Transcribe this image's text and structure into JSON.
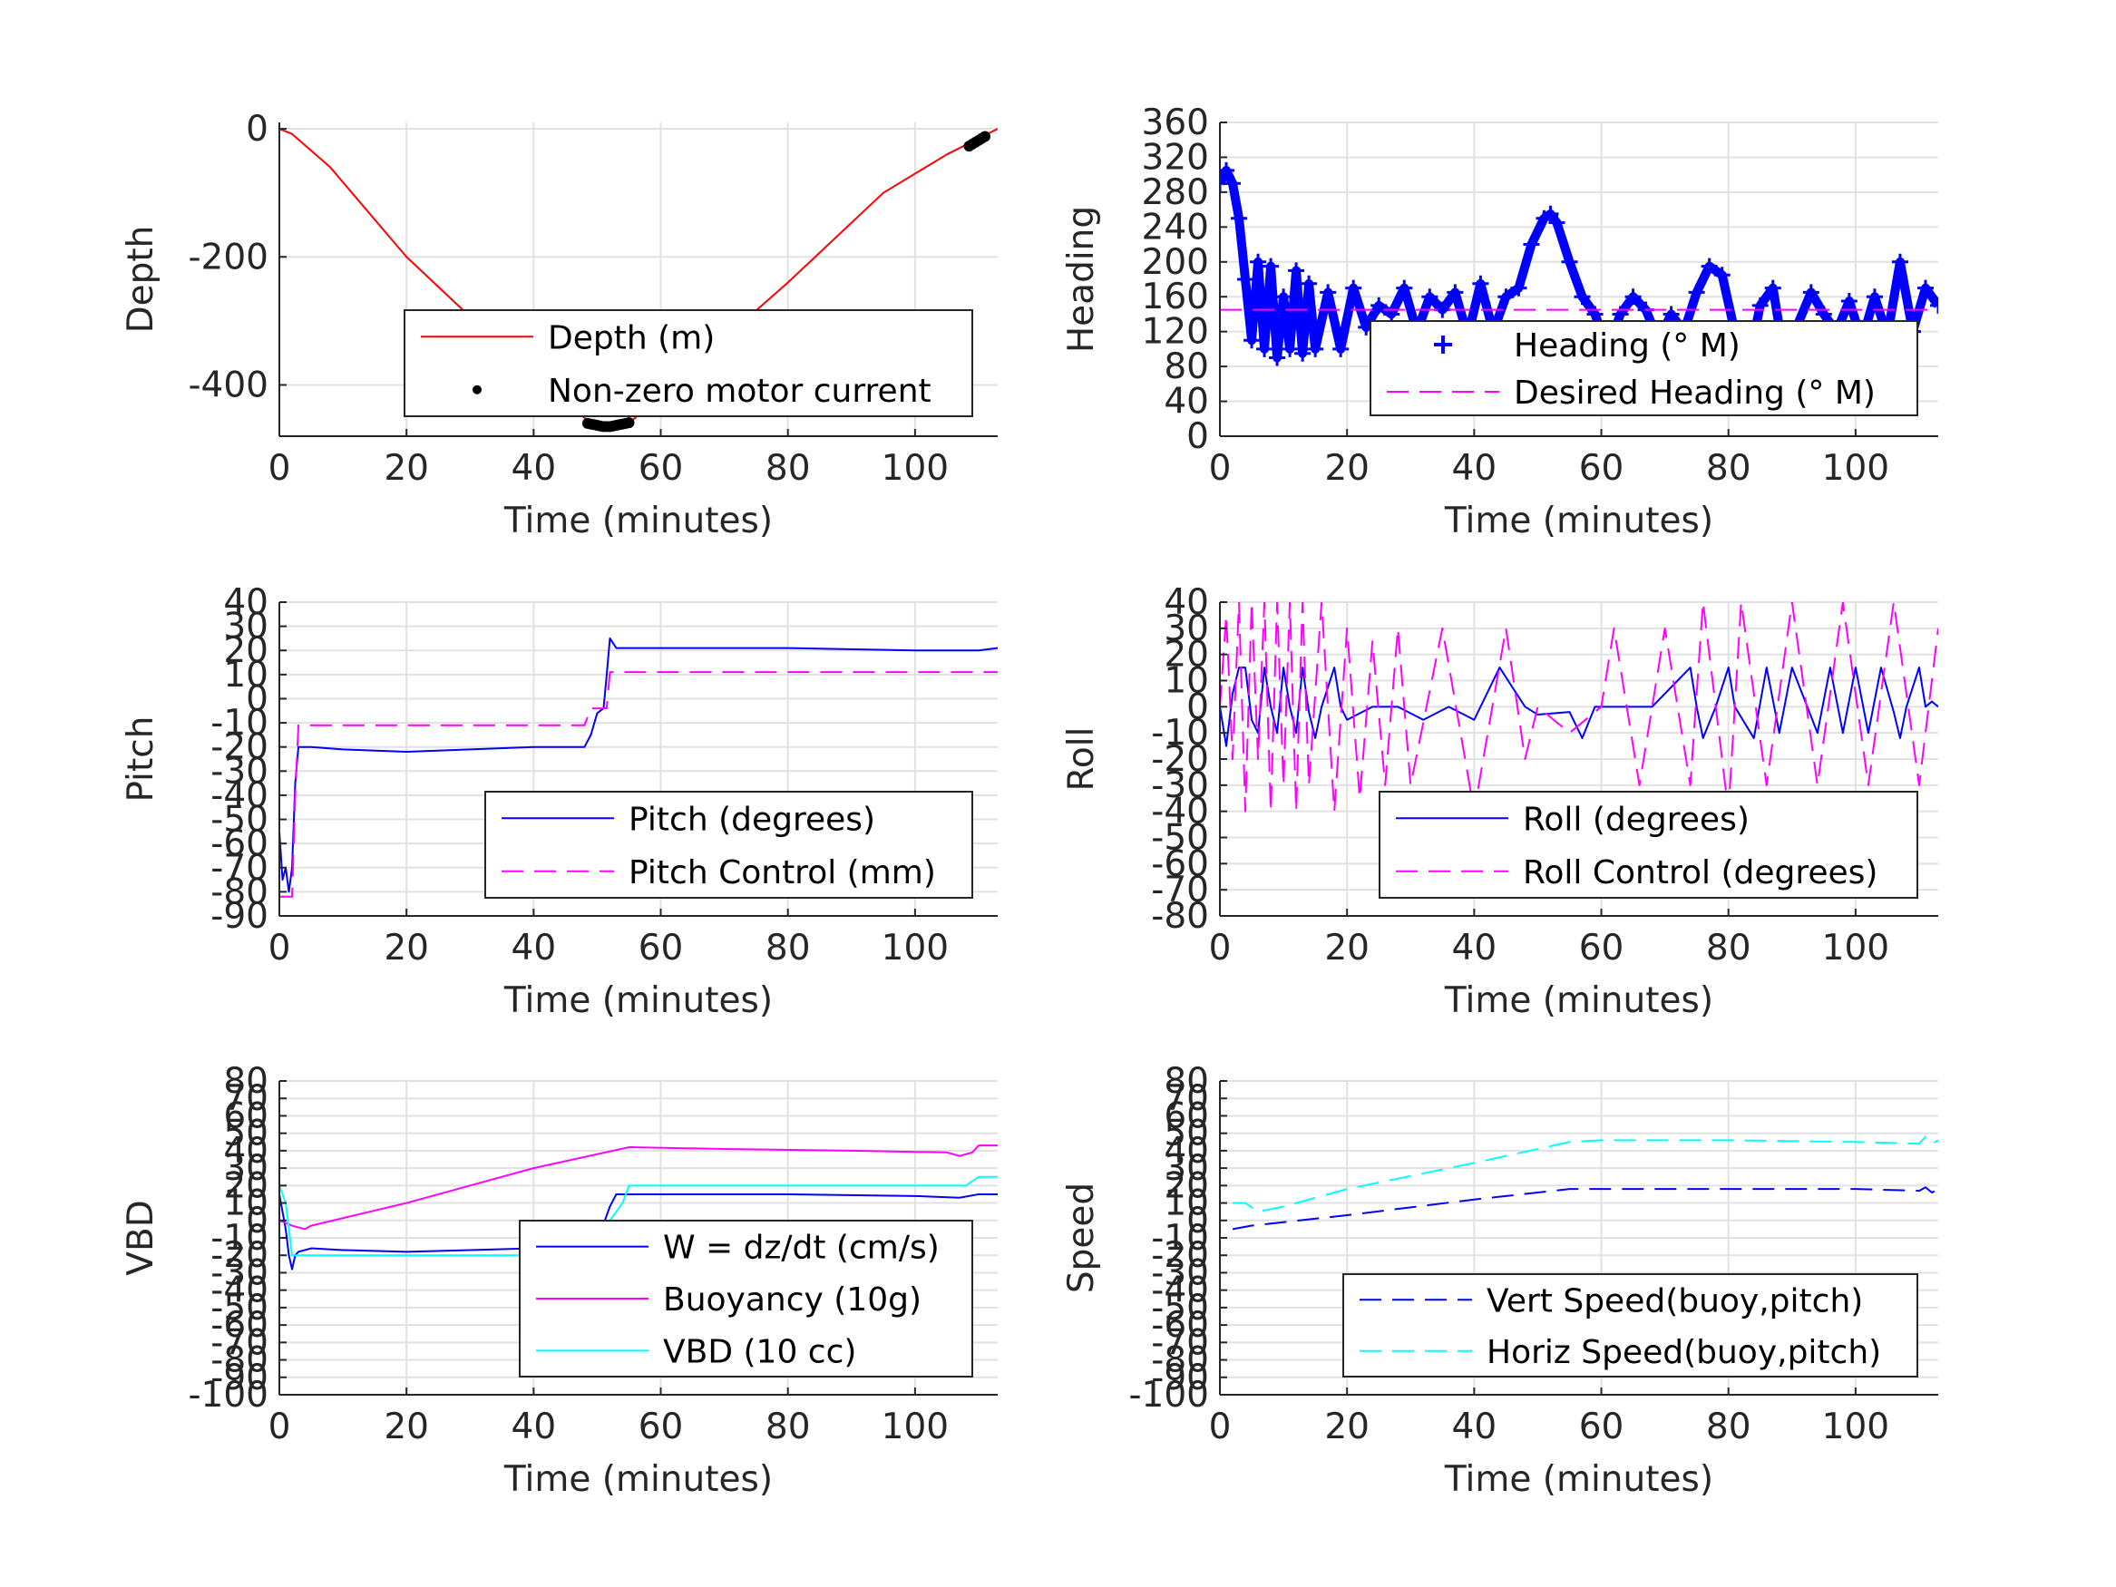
{
  "chart_data": [
    {
      "id": "depth",
      "type": "line",
      "xlabel": "Time (minutes)",
      "ylabel": "Depth",
      "xlim": [
        0,
        113
      ],
      "ylim": [
        -480,
        10
      ],
      "xticks": [
        0,
        20,
        40,
        60,
        80,
        100
      ],
      "yticks": [
        0,
        -200,
        -400
      ],
      "grid": true,
      "legend": {
        "placement": "lower-right"
      },
      "series": [
        {
          "name": "Depth (m)",
          "color": "#ff0000",
          "style": "solid",
          "x": [
            0,
            2,
            8,
            20,
            35,
            49,
            52,
            55,
            68,
            80,
            95,
            105,
            113
          ],
          "y": [
            0,
            -8,
            -60,
            -200,
            -340,
            -460,
            -465,
            -460,
            -345,
            -240,
            -100,
            -40,
            0
          ]
        },
        {
          "name": "Non-zero motor current",
          "color": "#000000",
          "style": "dots",
          "x": [
            48.5,
            49,
            49.5,
            50,
            50.5,
            51,
            51.5,
            52,
            52.5,
            53,
            53.5,
            54,
            54.5,
            55,
            108.5,
            109,
            109.5,
            110,
            110.5,
            111
          ],
          "y": [
            -460,
            -461,
            -462,
            -463,
            -464,
            -465,
            -465,
            -465,
            -464,
            -463,
            -462,
            -461,
            -460,
            -459,
            -27,
            -24,
            -21,
            -18,
            -15,
            -12
          ]
        }
      ]
    },
    {
      "id": "heading",
      "type": "line",
      "xlabel": "Time (minutes)",
      "ylabel": "Heading",
      "xlim": [
        0,
        113
      ],
      "ylim": [
        0,
        360
      ],
      "xticks": [
        0,
        20,
        40,
        60,
        80,
        100
      ],
      "yticks": [
        0,
        40,
        80,
        120,
        160,
        200,
        240,
        280,
        320,
        360
      ],
      "grid": true,
      "legend": {
        "placement": "lower-right"
      },
      "series": [
        {
          "name": "Heading (° M)",
          "color": "#0000ff",
          "style": "plus",
          "x": [
            0,
            1,
            2,
            3,
            4,
            5,
            6,
            7,
            8,
            9,
            10,
            11,
            12,
            13,
            14,
            15,
            17,
            19,
            21,
            23,
            25,
            27,
            29,
            31,
            33,
            35,
            37,
            39,
            41,
            43,
            45,
            47,
            49,
            51,
            52,
            53,
            55,
            57,
            59,
            61,
            63,
            65,
            67,
            69,
            71,
            73,
            75,
            77,
            79,
            81,
            83,
            85,
            87,
            89,
            91,
            93,
            95,
            97,
            99,
            101,
            103,
            105,
            107,
            109,
            111,
            113
          ],
          "y": [
            290,
            305,
            290,
            250,
            180,
            110,
            200,
            100,
            195,
            90,
            160,
            100,
            190,
            95,
            175,
            100,
            165,
            100,
            170,
            125,
            150,
            140,
            170,
            120,
            160,
            145,
            165,
            115,
            175,
            120,
            160,
            170,
            220,
            250,
            255,
            245,
            200,
            160,
            140,
            100,
            140,
            160,
            145,
            110,
            140,
            120,
            165,
            195,
            185,
            120,
            80,
            150,
            170,
            80,
            130,
            165,
            140,
            120,
            155,
            110,
            160,
            115,
            200,
            120,
            170,
            150
          ]
        },
        {
          "name": "Desired Heading (° M)",
          "color": "#ff00ff",
          "style": "dashed",
          "x": [
            0,
            113
          ],
          "y": [
            145,
            145
          ]
        }
      ]
    },
    {
      "id": "pitch",
      "type": "line",
      "xlabel": "Time (minutes)",
      "ylabel": "Pitch",
      "xlim": [
        0,
        113
      ],
      "ylim": [
        -90,
        40
      ],
      "xticks": [
        0,
        20,
        40,
        60,
        80,
        100
      ],
      "yticks": [
        40,
        30,
        20,
        10,
        0,
        -10,
        -20,
        -30,
        -40,
        -50,
        -60,
        -70,
        -80,
        -90
      ],
      "grid": true,
      "legend": {
        "placement": "lower-right"
      },
      "series": [
        {
          "name": "Pitch (degrees)",
          "color": "#0000ff",
          "style": "solid",
          "x": [
            0,
            0.5,
            1,
            1.5,
            2,
            2.5,
            3,
            5,
            10,
            20,
            30,
            40,
            48,
            49,
            50,
            51,
            51.5,
            52,
            53,
            60,
            80,
            100,
            110,
            113
          ],
          "y": [
            -55,
            -75,
            -70,
            -80,
            -70,
            -35,
            -20,
            -20,
            -21,
            -22,
            -21,
            -20,
            -20,
            -15,
            -6,
            -4,
            10,
            25,
            21,
            21,
            21,
            20,
            20,
            21
          ]
        },
        {
          "name": "Pitch Control (mm)",
          "color": "#ff00ff",
          "style": "dashed",
          "x": [
            0,
            2,
            2.5,
            3,
            20,
            40,
            48,
            49,
            51.5,
            52,
            60,
            80,
            100,
            113
          ],
          "y": [
            -82,
            -82,
            -40,
            -11,
            -11,
            -11,
            -11,
            -4,
            -4,
            11,
            11,
            11,
            11,
            11
          ]
        }
      ]
    },
    {
      "id": "roll",
      "type": "line",
      "xlabel": "Time (minutes)",
      "ylabel": "Roll",
      "xlim": [
        0,
        113
      ],
      "ylim": [
        -80,
        40
      ],
      "xticks": [
        0,
        20,
        40,
        60,
        80,
        100
      ],
      "yticks": [
        40,
        30,
        20,
        10,
        0,
        -10,
        -20,
        -30,
        -40,
        -50,
        -60,
        -70,
        -80
      ],
      "grid": true,
      "legend": {
        "placement": "lower-right"
      },
      "series": [
        {
          "name": "Roll (degrees)",
          "color": "#0000ff",
          "style": "solid",
          "x": [
            0,
            1,
            2,
            3,
            4,
            5,
            6,
            7,
            8,
            9,
            10,
            11,
            12,
            13,
            14,
            15,
            16,
            18,
            19,
            20,
            24,
            28,
            32,
            36,
            40,
            44,
            48,
            50,
            55,
            57,
            59,
            62,
            68,
            74,
            75,
            76,
            78,
            80,
            81,
            84,
            86,
            88,
            90,
            94,
            96,
            98,
            100,
            102,
            104,
            106,
            107,
            108,
            110,
            111,
            112,
            113
          ],
          "y": [
            0,
            -15,
            5,
            15,
            15,
            -5,
            -10,
            15,
            0,
            -10,
            15,
            0,
            -10,
            15,
            -2,
            -12,
            0,
            15,
            0,
            -5,
            0,
            0,
            -5,
            0,
            -5,
            15,
            0,
            -3,
            -2,
            -12,
            0,
            0,
            0,
            15,
            0,
            -12,
            0,
            15,
            0,
            -12,
            15,
            -10,
            15,
            -10,
            15,
            -10,
            15,
            -10,
            15,
            -2,
            -12,
            0,
            15,
            0,
            2,
            0
          ]
        },
        {
          "name": "Roll Control (degrees)",
          "color": "#ff00ff",
          "style": "dashed",
          "x": [
            0,
            1,
            2,
            3,
            4,
            5,
            6,
            7,
            8,
            9,
            10,
            11,
            12,
            13,
            14,
            16,
            18,
            20,
            22,
            24,
            26,
            28,
            30,
            35,
            40,
            45,
            48,
            50,
            55,
            60,
            62,
            66,
            70,
            74,
            76,
            80,
            82,
            86,
            90,
            94,
            98,
            102,
            106,
            110,
            113
          ],
          "y": [
            0,
            35,
            -20,
            40,
            -40,
            40,
            -20,
            40,
            -40,
            40,
            -30,
            40,
            -40,
            40,
            -30,
            40,
            -40,
            30,
            -35,
            25,
            -30,
            30,
            -30,
            30,
            -40,
            30,
            -20,
            0,
            -10,
            0,
            30,
            -30,
            30,
            -30,
            40,
            -40,
            40,
            -30,
            40,
            -30,
            40,
            -30,
            40,
            -30,
            30
          ]
        }
      ]
    },
    {
      "id": "vbd",
      "type": "line",
      "xlabel": "Time (minutes)",
      "ylabel": "VBD",
      "xlim": [
        0,
        113
      ],
      "ylim": [
        -100,
        80
      ],
      "xticks": [
        0,
        20,
        40,
        60,
        80,
        100
      ],
      "yticks": [
        80,
        70,
        60,
        50,
        40,
        30,
        20,
        10,
        0,
        -10,
        -20,
        -30,
        -40,
        -50,
        -60,
        -70,
        -80,
        -90,
        -100
      ],
      "grid": true,
      "legend": {
        "placement": "lower-right"
      },
      "series": [
        {
          "name": "W = dz/dt (cm/s)",
          "color": "#0000ff",
          "style": "solid",
          "x": [
            0,
            1,
            1.5,
            2,
            2.5,
            3,
            5,
            10,
            20,
            30,
            40,
            47,
            48,
            49,
            50,
            51,
            52,
            53,
            55,
            60,
            80,
            100,
            107,
            110,
            113
          ],
          "y": [
            15,
            -5,
            -20,
            -28,
            -20,
            -18,
            -16,
            -17,
            -18,
            -17,
            -16,
            -16,
            -16,
            -12,
            -5,
            -2,
            8,
            15,
            15,
            15,
            15,
            14,
            13,
            15,
            15
          ]
        },
        {
          "name": "Buoyancy (10g)",
          "color": "#ff00ff",
          "style": "solid",
          "x": [
            0,
            2,
            3,
            4,
            5,
            20,
            40,
            55,
            70,
            90,
            105,
            107,
            109,
            110,
            111,
            113
          ],
          "y": [
            0,
            -3,
            -4,
            -5,
            -3,
            10,
            30,
            42,
            41,
            40,
            39,
            37,
            39,
            43,
            43,
            43
          ]
        },
        {
          "name": "VBD (10 cc)",
          "color": "#00ffff",
          "style": "solid",
          "x": [
            0,
            1,
            2,
            3,
            4,
            20,
            40,
            48,
            50,
            52,
            54,
            55,
            70,
            90,
            108,
            110,
            113
          ],
          "y": [
            20,
            10,
            -20,
            -20,
            -20,
            -20,
            -20,
            -20,
            -10,
            0,
            10,
            20,
            20,
            20,
            20,
            25,
            25
          ]
        }
      ]
    },
    {
      "id": "speed",
      "type": "line",
      "xlabel": "Time (minutes)",
      "ylabel": "Speed",
      "xlim": [
        0,
        113
      ],
      "ylim": [
        -100,
        80
      ],
      "xticks": [
        0,
        20,
        40,
        60,
        80,
        100
      ],
      "yticks": [
        80,
        70,
        60,
        50,
        40,
        30,
        20,
        10,
        0,
        -10,
        -20,
        -30,
        -40,
        -50,
        -60,
        -70,
        -80,
        -90,
        -100
      ],
      "grid": true,
      "legend": {
        "placement": "lower-right"
      },
      "series": [
        {
          "name": "Vert Speed(buoy,pitch)",
          "color": "#0000ff",
          "style": "dashed",
          "x": [
            2,
            5,
            20,
            40,
            55,
            60,
            80,
            100,
            110,
            111,
            112,
            113
          ],
          "y": [
            -5,
            -3,
            3,
            12,
            18,
            18,
            18,
            18,
            17,
            19,
            16,
            18
          ]
        },
        {
          "name": "Horiz Speed(buoy,pitch)",
          "color": "#00ffff",
          "style": "dashed",
          "x": [
            2,
            4,
            6,
            10,
            20,
            40,
            55,
            60,
            80,
            100,
            110,
            111,
            112,
            113
          ],
          "y": [
            10,
            10,
            5,
            8,
            18,
            33,
            45,
            46,
            46,
            45,
            44,
            48,
            44,
            46
          ]
        }
      ]
    }
  ]
}
